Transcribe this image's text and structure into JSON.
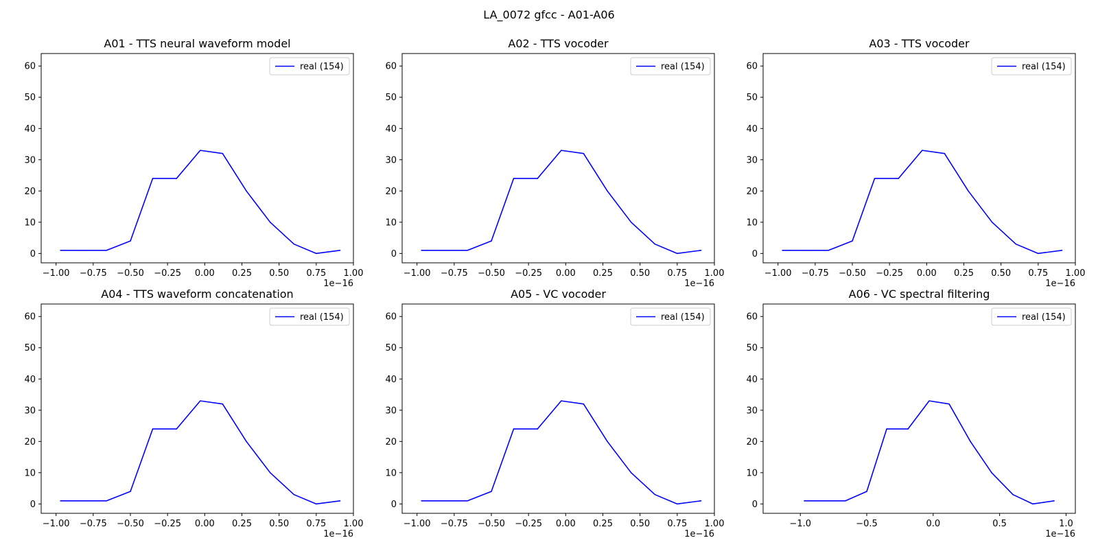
{
  "figure": {
    "title": "LA_0072 gfcc - A01-A06",
    "line_color": "#0000ff"
  },
  "chart_data": [
    {
      "type": "line",
      "title": "A01 - TTS neural waveform model",
      "x_scale_label": "1e−16",
      "xlim": [
        -1.1,
        1.0
      ],
      "ylim": [
        -3,
        64
      ],
      "xticks": [
        -1.0,
        -0.75,
        -0.5,
        -0.25,
        0.0,
        0.25,
        0.5,
        0.75,
        1.0
      ],
      "xtick_labels": [
        "−1.00",
        "−0.75",
        "−0.50",
        "−0.25",
        "0.00",
        "0.25",
        "0.50",
        "0.75",
        "1.00"
      ],
      "yticks": [
        0,
        10,
        20,
        30,
        40,
        50,
        60
      ],
      "legend_position": "top-right",
      "series": [
        {
          "name": "real (154)",
          "x": [
            -0.97,
            -0.81,
            -0.66,
            -0.5,
            -0.35,
            -0.19,
            -0.03,
            0.12,
            0.28,
            0.44,
            0.6,
            0.75,
            0.91
          ],
          "values": [
            1,
            1,
            1,
            4,
            24,
            24,
            33,
            32,
            20,
            10,
            3,
            0,
            1
          ]
        }
      ]
    },
    {
      "type": "line",
      "title": "A02 - TTS vocoder",
      "x_scale_label": "1e−16",
      "xlim": [
        -1.1,
        1.0
      ],
      "ylim": [
        -3,
        64
      ],
      "xticks": [
        -1.0,
        -0.75,
        -0.5,
        -0.25,
        0.0,
        0.25,
        0.5,
        0.75,
        1.0
      ],
      "xtick_labels": [
        "−1.00",
        "−0.75",
        "−0.50",
        "−0.25",
        "0.00",
        "0.25",
        "0.50",
        "0.75",
        "1.00"
      ],
      "yticks": [
        0,
        10,
        20,
        30,
        40,
        50,
        60
      ],
      "legend_position": "top-right",
      "series": [
        {
          "name": "real (154)",
          "x": [
            -0.97,
            -0.81,
            -0.66,
            -0.5,
            -0.35,
            -0.19,
            -0.03,
            0.12,
            0.28,
            0.44,
            0.6,
            0.75,
            0.91
          ],
          "values": [
            1,
            1,
            1,
            4,
            24,
            24,
            33,
            32,
            20,
            10,
            3,
            0,
            1
          ]
        }
      ]
    },
    {
      "type": "line",
      "title": "A03 - TTS vocoder",
      "x_scale_label": "1e−16",
      "xlim": [
        -1.1,
        1.0
      ],
      "ylim": [
        -3,
        64
      ],
      "xticks": [
        -1.0,
        -0.75,
        -0.5,
        -0.25,
        0.0,
        0.25,
        0.5,
        0.75,
        1.0
      ],
      "xtick_labels": [
        "−1.00",
        "−0.75",
        "−0.50",
        "−0.25",
        "0.00",
        "0.25",
        "0.50",
        "0.75",
        "1.00"
      ],
      "yticks": [
        0,
        10,
        20,
        30,
        40,
        50,
        60
      ],
      "legend_position": "top-right",
      "series": [
        {
          "name": "real (154)",
          "x": [
            -0.97,
            -0.81,
            -0.66,
            -0.5,
            -0.35,
            -0.19,
            -0.03,
            0.12,
            0.28,
            0.44,
            0.6,
            0.75,
            0.91
          ],
          "values": [
            1,
            1,
            1,
            4,
            24,
            24,
            33,
            32,
            20,
            10,
            3,
            0,
            1
          ]
        }
      ]
    },
    {
      "type": "line",
      "title": "A04 - TTS waveform concatenation",
      "x_scale_label": "1e−16",
      "xlim": [
        -1.1,
        1.0
      ],
      "ylim": [
        -3,
        64
      ],
      "xticks": [
        -1.0,
        -0.75,
        -0.5,
        -0.25,
        0.0,
        0.25,
        0.5,
        0.75,
        1.0
      ],
      "xtick_labels": [
        "−1.00",
        "−0.75",
        "−0.50",
        "−0.25",
        "0.00",
        "0.25",
        "0.50",
        "0.75",
        "1.00"
      ],
      "yticks": [
        0,
        10,
        20,
        30,
        40,
        50,
        60
      ],
      "legend_position": "top-right",
      "series": [
        {
          "name": "real (154)",
          "x": [
            -0.97,
            -0.81,
            -0.66,
            -0.5,
            -0.35,
            -0.19,
            -0.03,
            0.12,
            0.28,
            0.44,
            0.6,
            0.75,
            0.91
          ],
          "values": [
            1,
            1,
            1,
            4,
            24,
            24,
            33,
            32,
            20,
            10,
            3,
            0,
            1
          ]
        }
      ]
    },
    {
      "type": "line",
      "title": "A05 - VC vocoder",
      "x_scale_label": "1e−16",
      "xlim": [
        -1.1,
        1.0
      ],
      "ylim": [
        -3,
        64
      ],
      "xticks": [
        -1.0,
        -0.75,
        -0.5,
        -0.25,
        0.0,
        0.25,
        0.5,
        0.75,
        1.0
      ],
      "xtick_labels": [
        "−1.00",
        "−0.75",
        "−0.50",
        "−0.25",
        "0.00",
        "0.25",
        "0.50",
        "0.75",
        "1.00"
      ],
      "yticks": [
        0,
        10,
        20,
        30,
        40,
        50,
        60
      ],
      "legend_position": "top-right",
      "series": [
        {
          "name": "real (154)",
          "x": [
            -0.97,
            -0.81,
            -0.66,
            -0.5,
            -0.35,
            -0.19,
            -0.03,
            0.12,
            0.28,
            0.44,
            0.6,
            0.75,
            0.91
          ],
          "values": [
            1,
            1,
            1,
            4,
            24,
            24,
            33,
            32,
            20,
            10,
            3,
            0,
            1
          ]
        }
      ]
    },
    {
      "type": "line",
      "title": "A06 - VC spectral filtering",
      "x_scale_label": "1e−16",
      "xlim": [
        -1.28,
        1.07
      ],
      "ylim": [
        -3,
        64
      ],
      "xticks": [
        -1.0,
        -0.5,
        0.0,
        0.5,
        1.0
      ],
      "xtick_labels": [
        "−1.0",
        "−0.5",
        "0.0",
        "0.5",
        "1.0"
      ],
      "yticks": [
        0,
        10,
        20,
        30,
        40,
        50,
        60
      ],
      "legend_position": "top-right",
      "series": [
        {
          "name": "real (154)",
          "x": [
            -0.97,
            -0.81,
            -0.66,
            -0.5,
            -0.35,
            -0.19,
            -0.03,
            0.12,
            0.28,
            0.44,
            0.6,
            0.75,
            0.91
          ],
          "values": [
            1,
            1,
            1,
            4,
            24,
            24,
            33,
            32,
            20,
            10,
            3,
            0,
            1
          ]
        }
      ]
    }
  ]
}
